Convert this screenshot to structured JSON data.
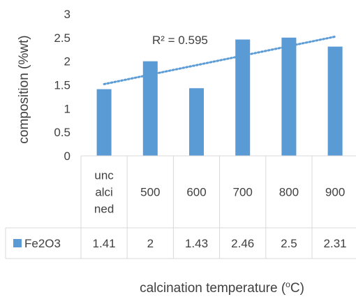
{
  "chart_data": {
    "type": "bar",
    "title": "",
    "ylabel": "composition (%wt)",
    "xlabel": "calcination temperature (°C)",
    "xlabel_parts": {
      "main": "calcination temperature (",
      "sup": "o",
      "end": "C)"
    },
    "ylim": [
      0,
      3
    ],
    "yticks": [
      0,
      0.5,
      1,
      1.5,
      2,
      2.5,
      3
    ],
    "ytick_labels": [
      "0",
      "0.5",
      "1",
      "1.5",
      "2",
      "2.5",
      "3"
    ],
    "categories": [
      "uncalcined",
      "500",
      "600",
      "700",
      "800",
      "900"
    ],
    "category_display_lines": [
      [
        "unc",
        "alci",
        "ned"
      ],
      [
        "500"
      ],
      [
        "600"
      ],
      [
        "700"
      ],
      [
        "800"
      ],
      [
        "900"
      ]
    ],
    "series": [
      {
        "name": "Fe2O3",
        "color": "#5b9bd5",
        "values": [
          1.41,
          2,
          1.43,
          2.46,
          2.5,
          2.31
        ],
        "value_labels": [
          "1.41",
          "2",
          "1.43",
          "2.46",
          "2.5",
          "2.31"
        ]
      }
    ],
    "trendline": {
      "type": "linear",
      "style": "dotted",
      "color": "#5b9bd5",
      "r2_label": "R² = 0.595"
    },
    "grid": false,
    "data_table": true
  }
}
